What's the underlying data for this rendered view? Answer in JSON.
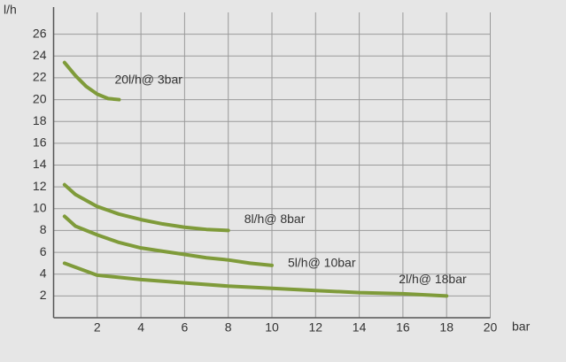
{
  "chart_data": {
    "type": "line",
    "x_label": "bar",
    "y_label": "l/h",
    "xlim": [
      0,
      20
    ],
    "ylim": [
      0,
      28
    ],
    "xticks": [
      2,
      4,
      6,
      8,
      10,
      12,
      14,
      16,
      18,
      20
    ],
    "yticks": [
      2,
      4,
      6,
      8,
      10,
      12,
      14,
      16,
      18,
      20,
      22,
      24,
      26
    ],
    "grid": true,
    "series": [
      {
        "name": "20l/h@ 3bar",
        "color": "#7f9b3a",
        "x": [
          0.5,
          1,
          1.5,
          2,
          2.5,
          3
        ],
        "values": [
          23.4,
          22.2,
          21.2,
          20.5,
          20.1,
          20.0
        ]
      },
      {
        "name": "8l/h@ 8bar",
        "color": "#7f9b3a",
        "x": [
          0.5,
          1,
          2,
          3,
          4,
          5,
          6,
          7,
          8
        ],
        "values": [
          12.2,
          11.3,
          10.2,
          9.5,
          9.0,
          8.6,
          8.3,
          8.1,
          8.0
        ]
      },
      {
        "name": "5l/h@ 10bar",
        "color": "#7f9b3a",
        "x": [
          0.5,
          1,
          2,
          3,
          4,
          5,
          6,
          7,
          8,
          9,
          10
        ],
        "values": [
          9.3,
          8.4,
          7.6,
          6.9,
          6.4,
          6.1,
          5.8,
          5.5,
          5.3,
          5.0,
          4.8
        ]
      },
      {
        "name": "2l/h@ 18bar",
        "color": "#7f9b3a",
        "x": [
          0.5,
          2,
          4,
          6,
          8,
          10,
          12,
          14,
          16,
          18
        ],
        "values": [
          5.0,
          3.9,
          3.5,
          3.2,
          2.9,
          2.7,
          2.5,
          2.3,
          2.2,
          2.0
        ]
      }
    ]
  }
}
